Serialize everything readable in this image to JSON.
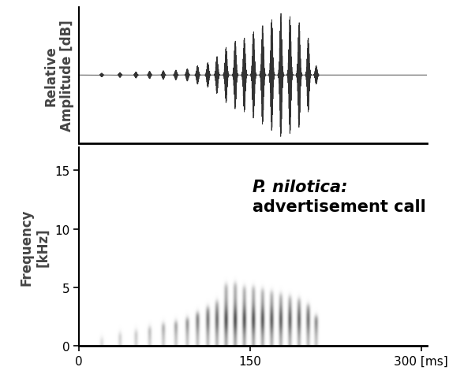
{
  "chart_data": [
    {
      "type": "waveform",
      "y_label": "Relative\nAmplitude [dB]",
      "x": [
        20,
        36,
        50,
        62,
        74,
        85,
        95,
        104,
        113,
        121,
        129,
        137,
        145,
        153,
        161,
        169,
        177,
        185,
        193,
        201,
        208
      ],
      "values": [
        0.03,
        0.04,
        0.05,
        0.06,
        0.07,
        0.08,
        0.1,
        0.15,
        0.2,
        0.3,
        0.45,
        0.55,
        0.6,
        0.7,
        0.8,
        0.9,
        1.0,
        0.95,
        0.85,
        0.6,
        0.15
      ],
      "xlim": [
        0,
        305
      ],
      "ylim": [
        -1.1,
        1.1
      ],
      "tick_labels": false,
      "color": "#333333"
    },
    {
      "type": "spectrogram",
      "y_label": "Frequency\n[kHz]",
      "annotation": [
        "P. nilotica:",
        "advertisement call"
      ],
      "x": [
        20,
        36,
        50,
        62,
        74,
        85,
        95,
        104,
        113,
        121,
        129,
        137,
        145,
        153,
        161,
        169,
        177,
        185,
        193,
        201,
        208
      ],
      "values": [
        0.6,
        1.0,
        1.2,
        1.5,
        1.8,
        2.0,
        2.3,
        2.8,
        3.3,
        3.8,
        5.2,
        5.3,
        5.0,
        5.0,
        4.8,
        4.6,
        4.4,
        4.2,
        4.0,
        3.5,
        2.5
      ],
      "xlim": [
        0,
        305
      ],
      "ylim": [
        0,
        17
      ],
      "xticks": [
        0,
        150,
        {
          "value": 300,
          "label": "300 [ms]"
        }
      ],
      "yticks": [
        0,
        5,
        10,
        15
      ],
      "color": "#555555"
    }
  ]
}
